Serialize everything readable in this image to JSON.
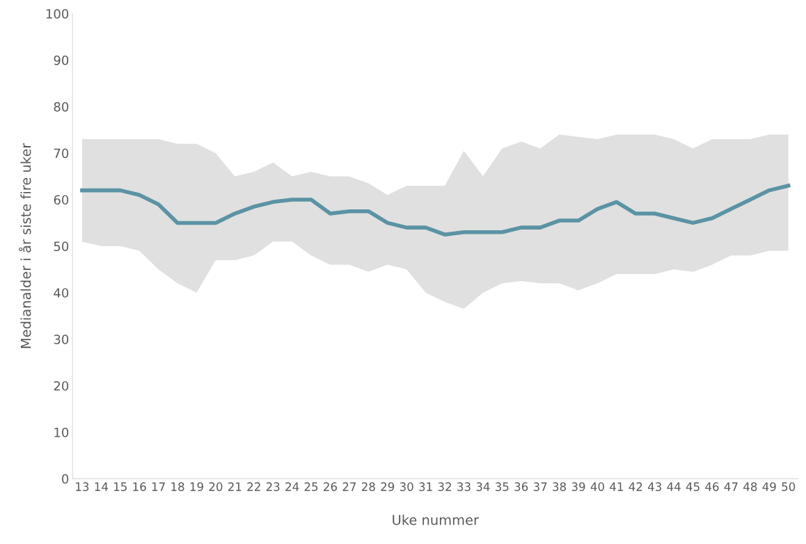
{
  "chart_data": {
    "type": "line",
    "xlabel": "Uke nummer",
    "ylabel": "Medianalder i år siste fire uker",
    "categories": [
      "13",
      "14",
      "15",
      "16",
      "17",
      "18",
      "19",
      "20",
      "21",
      "22",
      "23",
      "24",
      "25",
      "26",
      "27",
      "28",
      "29",
      "30",
      "31",
      "32",
      "33",
      "34",
      "35",
      "36",
      "37",
      "38",
      "39",
      "40",
      "41",
      "42",
      "43",
      "44",
      "45",
      "46",
      "47",
      "48",
      "49",
      "50"
    ],
    "series": [
      {
        "color": "#5b93a4",
        "values": [
          62,
          62,
          62,
          61,
          59,
          55,
          55,
          55,
          57,
          58.5,
          59.5,
          60,
          60,
          57,
          57.5,
          57.5,
          55,
          54,
          54,
          52.5,
          53,
          53,
          53,
          54,
          54,
          55.5,
          55.5,
          58,
          59.5,
          57,
          57,
          56,
          55,
          56,
          58,
          60,
          62,
          63
        ],
        "lower": [
          51,
          50,
          50,
          49,
          45,
          42,
          40,
          47,
          47,
          48,
          51,
          51,
          48,
          46,
          46,
          44.5,
          46,
          45,
          40,
          38,
          36.5,
          40,
          42,
          42.5,
          42,
          42,
          40.5,
          42,
          44,
          44,
          44,
          45,
          44.5,
          46,
          48,
          48,
          49,
          49
        ],
        "upper": [
          73,
          73,
          73,
          73,
          73,
          72,
          72,
          70,
          65,
          66,
          68,
          65,
          66,
          65,
          65,
          63.5,
          61,
          63,
          63,
          63,
          70.5,
          65,
          71,
          72.5,
          71,
          74,
          73.5,
          73,
          74,
          74,
          74,
          73,
          71,
          73,
          73,
          73,
          74,
          74
        ]
      }
    ],
    "ylim": [
      0,
      100
    ],
    "yticks": [
      0,
      10,
      20,
      30,
      40,
      50,
      60,
      70,
      80,
      90,
      100
    ],
    "grid": false
  }
}
